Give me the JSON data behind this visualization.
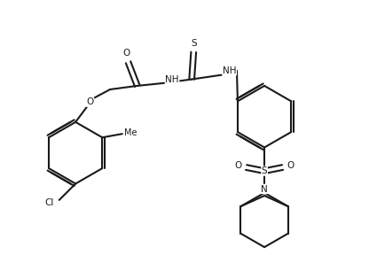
{
  "bg_color": "#ffffff",
  "line_color": "#1a1a1a",
  "text_color": "#1a1a1a",
  "bond_lw": 1.5,
  "figsize": [
    4.16,
    2.88
  ],
  "dpi": 100,
  "xlim": [
    0,
    10
  ],
  "ylim": [
    0,
    7
  ],
  "font_size": 7.5
}
